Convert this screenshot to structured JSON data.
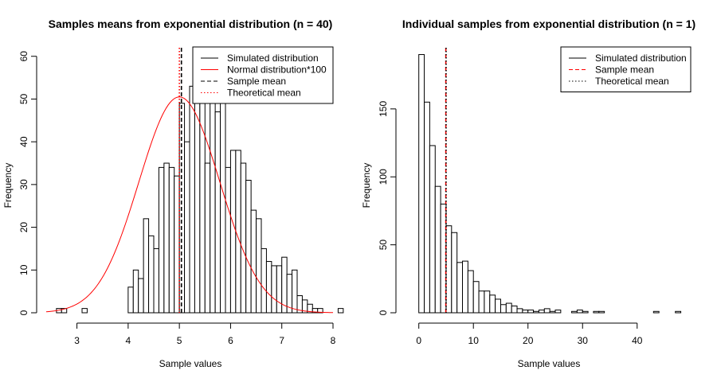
{
  "chart_data": [
    {
      "type": "bar",
      "title": "Samples means from exponential distribution (n = 40)",
      "xlabel": "Sample values",
      "ylabel": "Frequency",
      "xlim": [
        2.4,
        8.0
      ],
      "ylim": [
        0,
        62
      ],
      "x_ticks": [
        3,
        4,
        5,
        6,
        7,
        8
      ],
      "y_ticks": [
        0,
        10,
        20,
        30,
        40,
        50,
        60
      ],
      "grid": false,
      "legend_position": "top-right",
      "bin_start": 2.6,
      "bin_width": 0.1,
      "values": [
        1,
        1,
        0,
        0,
        0,
        1,
        0,
        0,
        0,
        0,
        0,
        0,
        0,
        0,
        6,
        10,
        8,
        22,
        18,
        15,
        34,
        35,
        34,
        32,
        49,
        40,
        53,
        60,
        49,
        35,
        57,
        47,
        56,
        34,
        38,
        38,
        35,
        31,
        24,
        22,
        15,
        12,
        11,
        11,
        13,
        9,
        10,
        4,
        3,
        2,
        1,
        1,
        0,
        0,
        0,
        1
      ],
      "curve": {
        "name": "Normal distribution*100",
        "mean": 5.0,
        "sd": 0.79,
        "scale": 100,
        "color": "#ff0000"
      },
      "vlines": [
        {
          "name": "Sample mean",
          "x": 5.04,
          "color": "#000000",
          "style": "dashed"
        },
        {
          "name": "Theoretical mean",
          "x": 5.0,
          "color": "#ff0000",
          "style": "dotted"
        }
      ],
      "legend": [
        {
          "label": "Simulated distribution",
          "color": "#000000",
          "style": "solid"
        },
        {
          "label": "Normal distribution*100",
          "color": "#ff0000",
          "style": "solid"
        },
        {
          "label": "Sample mean",
          "color": "#000000",
          "style": "dashed"
        },
        {
          "label": "Theoretical mean",
          "color": "#ff0000",
          "style": "dotted"
        }
      ]
    },
    {
      "type": "bar",
      "title": "Individual samples from exponential distribution (n = 1)",
      "xlabel": "Sample values",
      "ylabel": "Frequency",
      "xlim": [
        -2,
        48.5
      ],
      "ylim": [
        0,
        195
      ],
      "x_ticks": [
        0,
        10,
        20,
        30,
        40
      ],
      "y_ticks": [
        0,
        50,
        100,
        150
      ],
      "grid": false,
      "legend_position": "top-right",
      "bin_start": 0,
      "bin_width": 1,
      "values": [
        190,
        155,
        123,
        93,
        80,
        64,
        59,
        37,
        38,
        31,
        23,
        16,
        16,
        13,
        10,
        6,
        7,
        5,
        3,
        2,
        2,
        1,
        2,
        3,
        1,
        2,
        0,
        0,
        1,
        2,
        1,
        0,
        1,
        1,
        0,
        0,
        0,
        0,
        0,
        0,
        0,
        0,
        0,
        1,
        0,
        0,
        0,
        1
      ],
      "vlines": [
        {
          "name": "Sample mean",
          "x": 4.95,
          "color": "#ff0000",
          "style": "dashed"
        },
        {
          "name": "Theoretical mean",
          "x": 5.0,
          "color": "#000000",
          "style": "dotted"
        }
      ],
      "legend": [
        {
          "label": "Simulated distribution",
          "color": "#000000",
          "style": "solid"
        },
        {
          "label": "Sample mean",
          "color": "#ff0000",
          "style": "dashed"
        },
        {
          "label": "Theoretical mean",
          "color": "#000000",
          "style": "dotted"
        }
      ]
    }
  ]
}
